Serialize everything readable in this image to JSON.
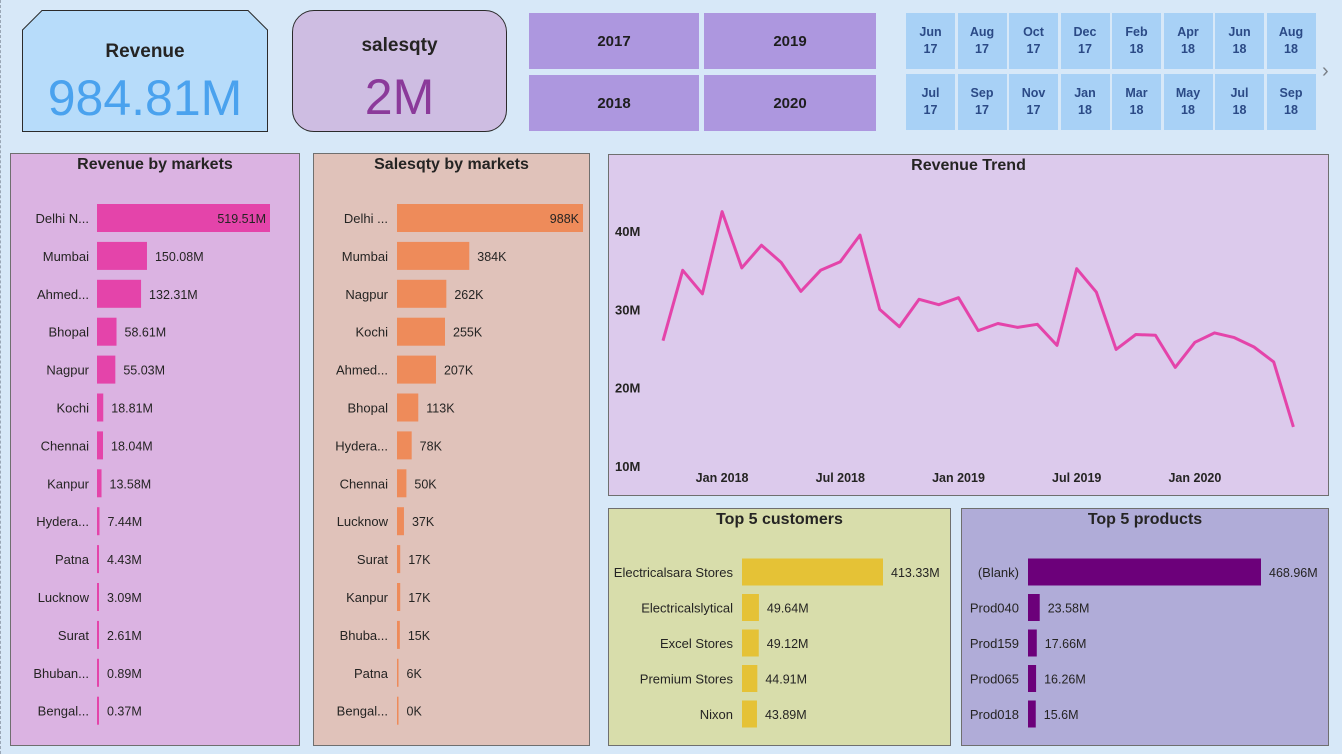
{
  "kpis": {
    "revenue": {
      "title": "Revenue",
      "value": "984.81M"
    },
    "salesqty": {
      "title": "salesqty",
      "value": "2M"
    }
  },
  "year_slicer": [
    "2017",
    "2019",
    "2018",
    "2020"
  ],
  "month_slicer": {
    "row1": [
      [
        "Jun",
        "17"
      ],
      [
        "Aug",
        "17"
      ],
      [
        "Oct",
        "17"
      ],
      [
        "Dec",
        "17"
      ],
      [
        "Feb",
        "18"
      ],
      [
        "Apr",
        "18"
      ],
      [
        "Jun",
        "18"
      ],
      [
        "Aug",
        "18"
      ]
    ],
    "row2": [
      [
        "Jul",
        "17"
      ],
      [
        "Sep",
        "17"
      ],
      [
        "Nov",
        "17"
      ],
      [
        "Jan",
        "18"
      ],
      [
        "Mar",
        "18"
      ],
      [
        "May",
        "18"
      ],
      [
        "Jul",
        "18"
      ],
      [
        "Sep",
        "18"
      ]
    ]
  },
  "colors": {
    "revenue_bar": "#e444aa",
    "salesqty_bar": "#ee8b5a",
    "trend_line": "#e444aa",
    "customers_bar": "#e5c236",
    "products_bar": "#6c007a"
  },
  "chart_data": [
    {
      "id": "revenue_by_markets",
      "type": "bar",
      "orientation": "horizontal",
      "title": "Revenue by markets",
      "categories": [
        "Delhi N...",
        "Mumbai",
        "Ahmed...",
        "Bhopal",
        "Nagpur",
        "Kochi",
        "Chennai",
        "Kanpur",
        "Hydera...",
        "Patna",
        "Lucknow",
        "Surat",
        "Bhuban...",
        "Bengal..."
      ],
      "values": [
        519.51,
        150.08,
        132.31,
        58.61,
        55.03,
        18.81,
        18.04,
        13.58,
        7.44,
        4.43,
        3.09,
        2.61,
        0.89,
        0.37
      ],
      "labels": [
        "519.51M",
        "150.08M",
        "132.31M",
        "58.61M",
        "55.03M",
        "18.81M",
        "18.04M",
        "13.58M",
        "7.44M",
        "4.43M",
        "3.09M",
        "2.61M",
        "0.89M",
        "0.37M"
      ]
    },
    {
      "id": "salesqty_by_markets",
      "type": "bar",
      "orientation": "horizontal",
      "title": "Salesqty by markets",
      "categories": [
        "Delhi ...",
        "Mumbai",
        "Nagpur",
        "Kochi",
        "Ahmed...",
        "Bhopal",
        "Hydera...",
        "Chennai",
        "Lucknow",
        "Surat",
        "Kanpur",
        "Bhuba...",
        "Patna",
        "Bengal..."
      ],
      "values": [
        988,
        384,
        262,
        255,
        207,
        113,
        78,
        50,
        37,
        17,
        17,
        15,
        6,
        0
      ],
      "labels": [
        "988K",
        "384K",
        "262K",
        "255K",
        "207K",
        "113K",
        "78K",
        "50K",
        "37K",
        "17K",
        "17K",
        "15K",
        "6K",
        "0K"
      ]
    },
    {
      "id": "revenue_trend",
      "type": "line",
      "title": "Revenue Trend",
      "x_tick_labels": [
        "Jan 2018",
        "Jul 2018",
        "Jan 2019",
        "Jul 2019",
        "Jan 2020"
      ],
      "y_tick_labels": [
        "40M",
        "30M",
        "20M",
        "10M"
      ],
      "y_ticks": [
        40,
        30,
        20,
        10
      ],
      "ylim": [
        10,
        45
      ],
      "x": [
        "2017-10",
        "2017-11",
        "2017-12",
        "2018-01",
        "2018-02",
        "2018-03",
        "2018-04",
        "2018-05",
        "2018-06",
        "2018-07",
        "2018-08",
        "2018-09",
        "2018-10",
        "2018-11",
        "2018-12",
        "2019-01",
        "2019-02",
        "2019-03",
        "2019-04",
        "2019-05",
        "2019-06",
        "2019-07",
        "2019-08",
        "2019-09",
        "2019-10",
        "2019-11",
        "2019-12",
        "2020-01",
        "2020-02",
        "2020-03",
        "2020-04",
        "2020-05",
        "2020-06"
      ],
      "values": [
        26.0,
        35.0,
        32.0,
        42.5,
        35.3,
        38.2,
        36.0,
        32.3,
        35.0,
        36.1,
        39.5,
        30.0,
        27.8,
        31.3,
        30.6,
        31.5,
        27.3,
        28.2,
        27.7,
        28.1,
        25.4,
        35.2,
        32.2,
        24.9,
        26.8,
        26.7,
        22.6,
        25.8,
        27.0,
        26.4,
        25.2,
        23.3,
        15.0
      ]
    },
    {
      "id": "top5_customers",
      "type": "bar",
      "orientation": "horizontal",
      "title": "Top 5 customers",
      "categories": [
        "Electricalsara Stores",
        "Electricalslytical",
        "Excel Stores",
        "Premium Stores",
        "Nixon"
      ],
      "values": [
        413.33,
        49.64,
        49.12,
        44.91,
        43.89
      ],
      "labels": [
        "413.33M",
        "49.64M",
        "49.12M",
        "44.91M",
        "43.89M"
      ]
    },
    {
      "id": "top5_products",
      "type": "bar",
      "orientation": "horizontal",
      "title": "Top 5 products",
      "categories": [
        "(Blank)",
        "Prod040",
        "Prod159",
        "Prod065",
        "Prod018"
      ],
      "values": [
        468.96,
        23.58,
        17.66,
        16.26,
        15.6
      ],
      "labels": [
        "468.96M",
        "23.58M",
        "17.66M",
        "16.26M",
        "15.6M"
      ]
    }
  ]
}
